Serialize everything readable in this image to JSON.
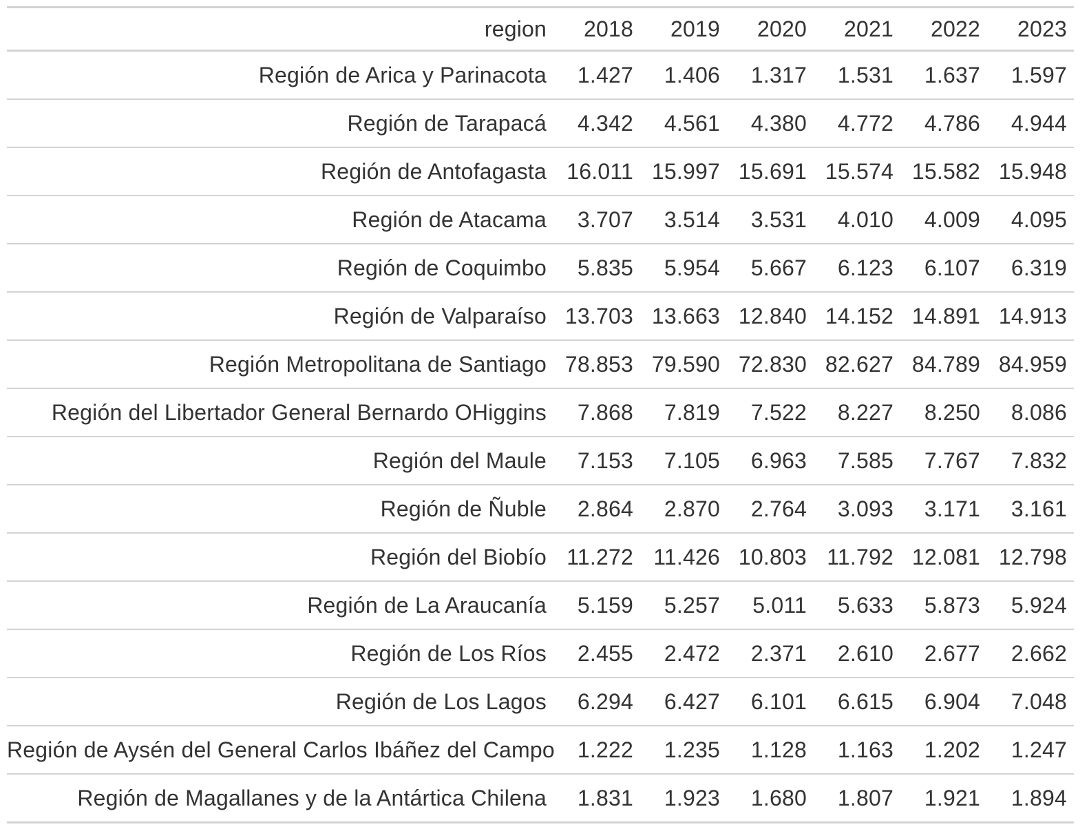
{
  "table": {
    "columns": [
      "region",
      "2018",
      "2019",
      "2020",
      "2021",
      "2022",
      "2023"
    ],
    "rows": [
      [
        "Región de Arica y Parinacota",
        "1.427",
        "1.406",
        "1.317",
        "1.531",
        "1.637",
        "1.597"
      ],
      [
        "Región de Tarapacá",
        "4.342",
        "4.561",
        "4.380",
        "4.772",
        "4.786",
        "4.944"
      ],
      [
        "Región de Antofagasta",
        "16.011",
        "15.997",
        "15.691",
        "15.574",
        "15.582",
        "15.948"
      ],
      [
        "Región de Atacama",
        "3.707",
        "3.514",
        "3.531",
        "4.010",
        "4.009",
        "4.095"
      ],
      [
        "Región de Coquimbo",
        "5.835",
        "5.954",
        "5.667",
        "6.123",
        "6.107",
        "6.319"
      ],
      [
        "Región de Valparaíso",
        "13.703",
        "13.663",
        "12.840",
        "14.152",
        "14.891",
        "14.913"
      ],
      [
        "Región Metropolitana de Santiago",
        "78.853",
        "79.590",
        "72.830",
        "82.627",
        "84.789",
        "84.959"
      ],
      [
        "Región del Libertador General Bernardo OHiggins",
        "7.868",
        "7.819",
        "7.522",
        "8.227",
        "8.250",
        "8.086"
      ],
      [
        "Región del Maule",
        "7.153",
        "7.105",
        "6.963",
        "7.585",
        "7.767",
        "7.832"
      ],
      [
        "Región de Ñuble",
        "2.864",
        "2.870",
        "2.764",
        "3.093",
        "3.171",
        "3.161"
      ],
      [
        "Región del Biobío",
        "11.272",
        "11.426",
        "10.803",
        "11.792",
        "12.081",
        "12.798"
      ],
      [
        "Región de La Araucanía",
        "5.159",
        "5.257",
        "5.011",
        "5.633",
        "5.873",
        "5.924"
      ],
      [
        "Región de Los Ríos",
        "2.455",
        "2.472",
        "2.371",
        "2.610",
        "2.677",
        "2.662"
      ],
      [
        "Región de Los Lagos",
        "6.294",
        "6.427",
        "6.101",
        "6.615",
        "6.904",
        "7.048"
      ],
      [
        "Región de Aysén del General Carlos Ibáñez del Campo",
        "1.222",
        "1.235",
        "1.128",
        "1.163",
        "1.202",
        "1.247"
      ],
      [
        "Región de Magallanes y de la Antártica Chilena",
        "1.831",
        "1.923",
        "1.680",
        "1.807",
        "1.921",
        "1.894"
      ]
    ]
  }
}
